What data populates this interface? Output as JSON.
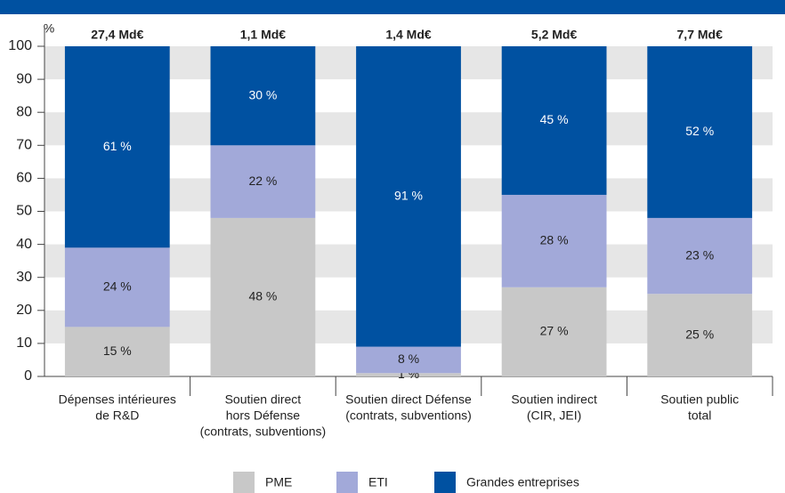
{
  "chart_data": {
    "type": "stacked_bar",
    "y_label": "%",
    "categories": [
      [
        "Dépenses intérieures",
        "de R&D"
      ],
      [
        "Soutien direct",
        "hors Défense",
        "(contrats, subventions)"
      ],
      [
        "Soutien direct Défense",
        "(contrats, subventions)"
      ],
      [
        "Soutien indirect",
        "(CIR, JEI)"
      ],
      [
        "Soutien public",
        "total"
      ]
    ],
    "totals": [
      "27,4 Md€",
      "1,1 Md€",
      "1,4 Md€",
      "5,2 Md€",
      "7,7 Md€"
    ],
    "series": [
      {
        "name": "PME",
        "color": "#c8c8c8",
        "values": [
          15,
          48,
          1,
          27,
          25
        ],
        "value_labels": [
          "15 %",
          "48 %",
          "1 %",
          "27 %",
          "25 %"
        ]
      },
      {
        "name": "ETI",
        "color": "#a2a9d9",
        "values": [
          24,
          22,
          8,
          28,
          23
        ],
        "value_labels": [
          "24 %",
          "22 %",
          "8 %",
          "28 %",
          "23 %"
        ]
      },
      {
        "name": "Grandes entreprises",
        "color": "#0051a1",
        "values": [
          61,
          30,
          91,
          45,
          52
        ],
        "value_labels": [
          "61 %",
          "30 %",
          "91 %",
          "45 %",
          "52 %"
        ]
      }
    ],
    "ylim": [
      0,
      100
    ],
    "yticks": [
      0,
      10,
      20,
      30,
      40,
      50,
      60,
      70,
      80,
      90,
      100
    ],
    "grid": true
  }
}
